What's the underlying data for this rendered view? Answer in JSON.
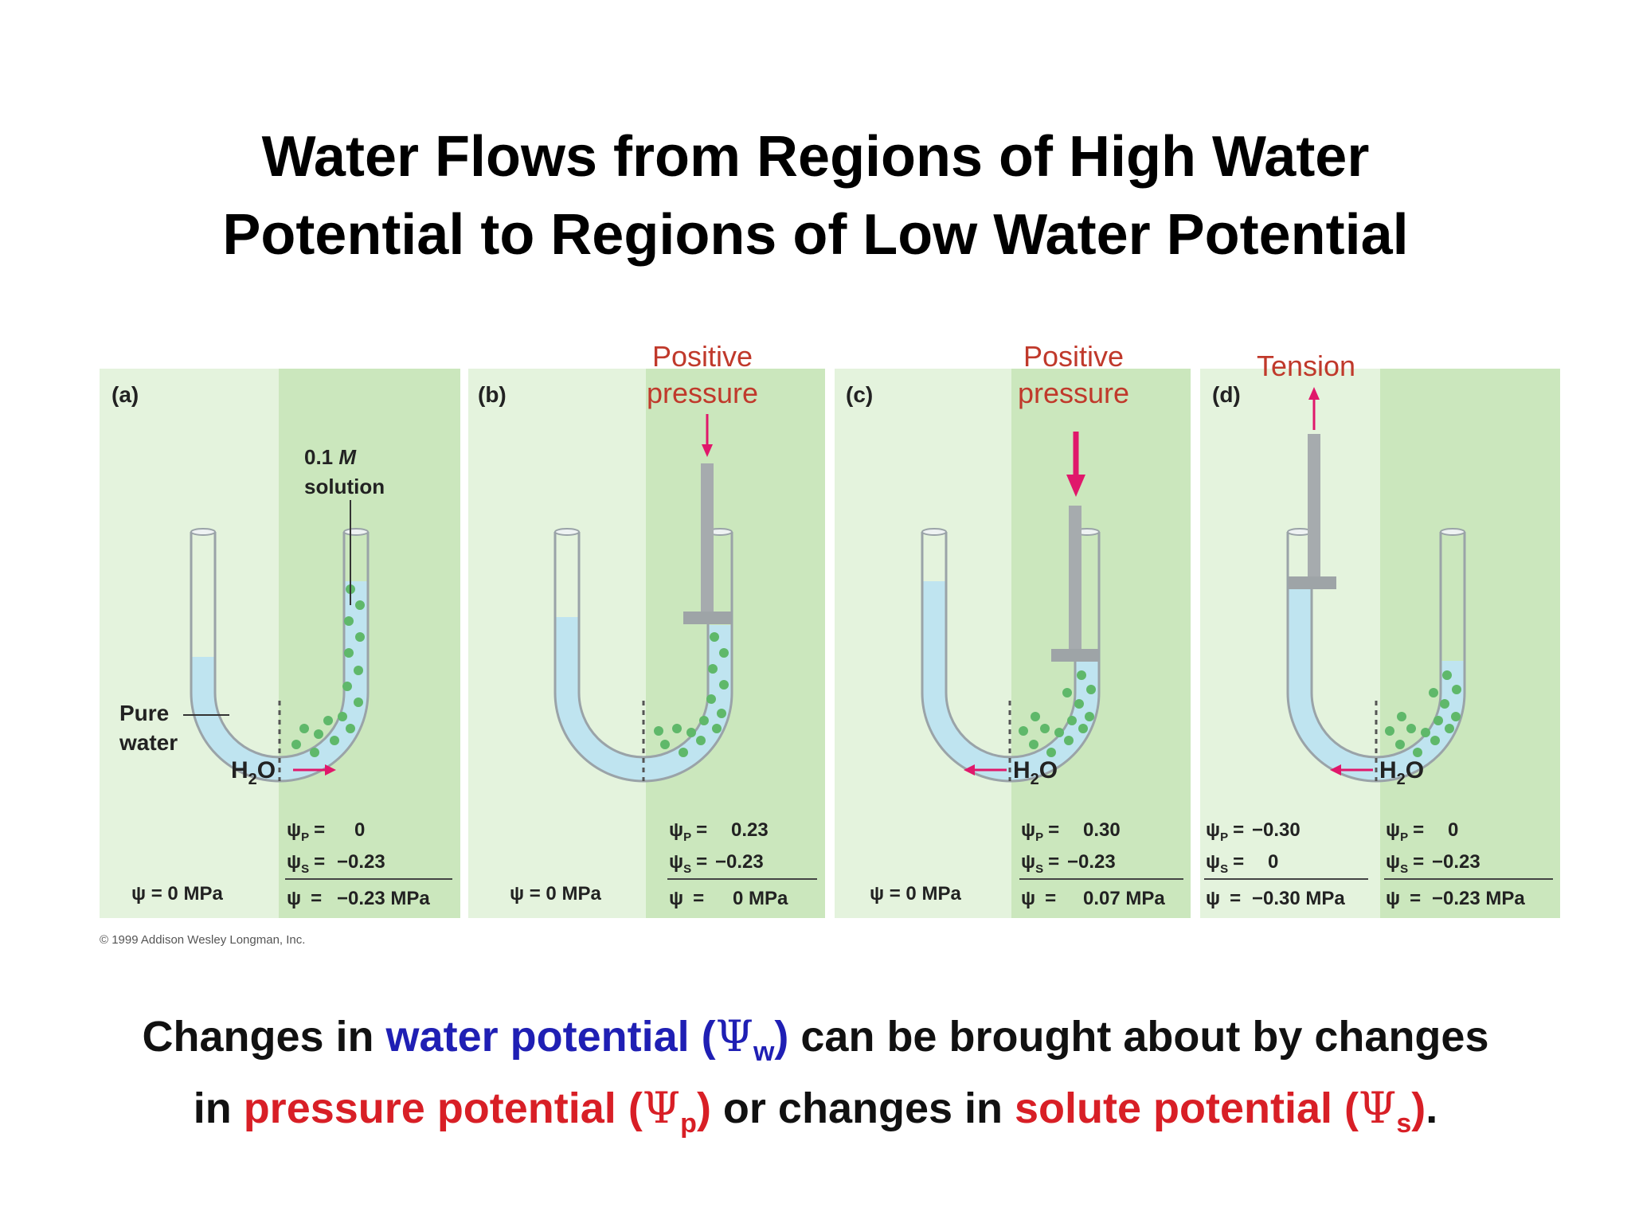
{
  "title": {
    "line1": "Water Flows from Regions of High Water",
    "line2": "Potential to Regions of Low Water Potential"
  },
  "colors": {
    "panel_left": "#e4f3dd",
    "panel_right": "#cbe7bd",
    "water": "#bfe4f0",
    "tube_outline": "#9aa3a8",
    "solute_dots": "#5fb86a",
    "piston": "#9ea4a7",
    "annotation": "#c0392b",
    "arrow": "#e0186b",
    "caption_blue": "#1f1fb4",
    "caption_red": "#d81f26"
  },
  "panels": [
    {
      "label": "(a)",
      "left_psi": "ψ = 0 MPa",
      "right": {
        "psi_p": "0",
        "psi_s": "−0.23",
        "psi": "−0.23 MPa"
      },
      "solution_label_1": "0.1 M",
      "solution_label_2": "solution",
      "pure_water_1": "Pure",
      "pure_water_2": "water",
      "h2o": "H",
      "flow": "right"
    },
    {
      "label": "(b)",
      "annotation_1": "Positive",
      "annotation_2": "pressure",
      "left_psi": "ψ = 0 MPa",
      "right": {
        "psi_p": "0.23",
        "psi_s": "−0.23",
        "psi": "0 MPa"
      }
    },
    {
      "label": "(c)",
      "annotation_1": "Positive",
      "annotation_2": "pressure",
      "left_psi": "ψ = 0 MPa",
      "right": {
        "psi_p": "0.30",
        "psi_s": "−0.23",
        "psi": "0.07 MPa"
      },
      "h2o": "H",
      "flow": "left"
    },
    {
      "label": "(d)",
      "annotation_1": "Tension",
      "left": {
        "psi_p": "−0.30",
        "psi_s": "0",
        "psi": "−0.30 MPa"
      },
      "right": {
        "psi_p": "0",
        "psi_s": "−0.23",
        "psi": "−0.23 MPa"
      },
      "h2o": "H",
      "flow": "left"
    }
  ],
  "labels": {
    "psi_symbol": "ψ",
    "p_sub": "P",
    "s_sub": "S",
    "equals": "=",
    "h2o_sub": "2",
    "h2o_o": "O"
  },
  "copyright": "© 1999 Addison Wesley Longman, Inc.",
  "caption": {
    "l1_a": "Changes in ",
    "l1_b": "water potential (",
    "l1_psi": "Ψ",
    "l1_sub": "w",
    "l1_c": ")",
    "l1_d": " can be brought about by changes",
    "l2_a": "in ",
    "l2_b": "pressure potential (",
    "l2_psi": "Ψ",
    "l2_sub": "p",
    "l2_c": ")",
    "l2_d": " or changes in ",
    "l2_e": "solute potential (",
    "l2_psi2": "Ψ",
    "l2_sub2": "s",
    "l2_f": ")",
    "l2_g": "."
  }
}
